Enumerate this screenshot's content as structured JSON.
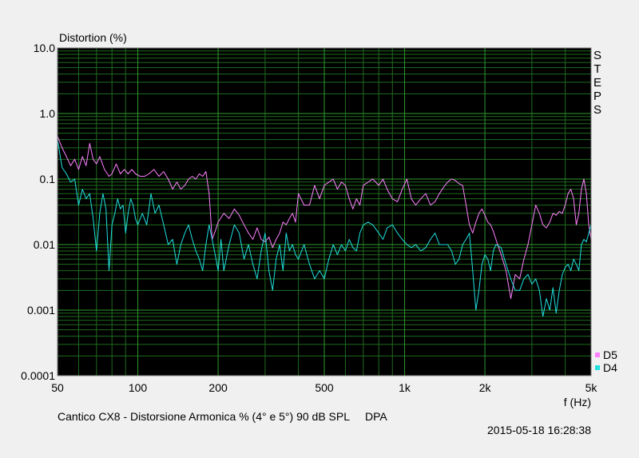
{
  "chart_data": {
    "type": "line",
    "ylabel": "Distortion (%)",
    "xlabel": "f (Hz)",
    "x_scale": "log",
    "y_scale": "log",
    "xlim": [
      50,
      5000
    ],
    "ylim": [
      0.0001,
      10
    ],
    "y_ticks": [
      {
        "value": 10,
        "label": "10.0"
      },
      {
        "value": 1,
        "label": "1.0"
      },
      {
        "value": 0.1,
        "label": "0.1"
      },
      {
        "value": 0.01,
        "label": "0.01"
      },
      {
        "value": 0.001,
        "label": "0.001"
      },
      {
        "value": 0.0001,
        "label": "0.0001"
      }
    ],
    "x_ticks": [
      {
        "value": 50,
        "label": "50"
      },
      {
        "value": 100,
        "label": "100"
      },
      {
        "value": 200,
        "label": "200"
      },
      {
        "value": 500,
        "label": "500"
      },
      {
        "value": 1000,
        "label": "1k"
      },
      {
        "value": 2000,
        "label": "2k"
      },
      {
        "value": 5000,
        "label": "5k"
      }
    ],
    "grid": true,
    "side_label": "STEPS",
    "footer_text": "Cantico CX8 - Distorsione Armonica % (4° e 5°) 90 dB SPL     DPA",
    "timestamp": "2015-05-18 16:28:38",
    "legend_position": "bottom-right",
    "series": [
      {
        "name": "D5",
        "color": "#ff80ff",
        "points": [
          [
            50,
            0.45
          ],
          [
            52,
            0.3
          ],
          [
            54,
            0.22
          ],
          [
            56,
            0.16
          ],
          [
            58,
            0.2
          ],
          [
            60,
            0.14
          ],
          [
            62,
            0.22
          ],
          [
            64,
            0.16
          ],
          [
            66,
            0.35
          ],
          [
            68,
            0.2
          ],
          [
            70,
            0.17
          ],
          [
            72,
            0.22
          ],
          [
            75,
            0.14
          ],
          [
            78,
            0.11
          ],
          [
            80,
            0.12
          ],
          [
            83,
            0.17
          ],
          [
            86,
            0.12
          ],
          [
            89,
            0.14
          ],
          [
            92,
            0.12
          ],
          [
            95,
            0.14
          ],
          [
            98,
            0.12
          ],
          [
            102,
            0.11
          ],
          [
            106,
            0.11
          ],
          [
            110,
            0.12
          ],
          [
            115,
            0.14
          ],
          [
            120,
            0.11
          ],
          [
            125,
            0.13
          ],
          [
            130,
            0.1
          ],
          [
            135,
            0.07
          ],
          [
            140,
            0.09
          ],
          [
            145,
            0.07
          ],
          [
            150,
            0.08
          ],
          [
            155,
            0.1
          ],
          [
            160,
            0.11
          ],
          [
            165,
            0.1
          ],
          [
            170,
            0.12
          ],
          [
            175,
            0.11
          ],
          [
            180,
            0.13
          ],
          [
            185,
            0.06
          ],
          [
            190,
            0.012
          ],
          [
            195,
            0.016
          ],
          [
            200,
            0.022
          ],
          [
            210,
            0.03
          ],
          [
            220,
            0.025
          ],
          [
            230,
            0.035
          ],
          [
            240,
            0.028
          ],
          [
            250,
            0.02
          ],
          [
            260,
            0.015
          ],
          [
            270,
            0.012
          ],
          [
            280,
            0.018
          ],
          [
            290,
            0.012
          ],
          [
            300,
            0.011
          ],
          [
            310,
            0.013
          ],
          [
            320,
            0.009
          ],
          [
            330,
            0.012
          ],
          [
            340,
            0.015
          ],
          [
            350,
            0.022
          ],
          [
            360,
            0.02
          ],
          [
            370,
            0.025
          ],
          [
            380,
            0.03
          ],
          [
            390,
            0.022
          ],
          [
            400,
            0.06
          ],
          [
            420,
            0.04
          ],
          [
            440,
            0.04
          ],
          [
            460,
            0.08
          ],
          [
            480,
            0.05
          ],
          [
            500,
            0.08
          ],
          [
            520,
            0.09
          ],
          [
            540,
            0.1
          ],
          [
            560,
            0.07
          ],
          [
            580,
            0.09
          ],
          [
            600,
            0.08
          ],
          [
            620,
            0.05
          ],
          [
            640,
            0.035
          ],
          [
            660,
            0.05
          ],
          [
            680,
            0.04
          ],
          [
            700,
            0.08
          ],
          [
            730,
            0.09
          ],
          [
            760,
            0.1
          ],
          [
            800,
            0.08
          ],
          [
            830,
            0.1
          ],
          [
            860,
            0.07
          ],
          [
            900,
            0.05
          ],
          [
            940,
            0.045
          ],
          [
            980,
            0.07
          ],
          [
            1020,
            0.1
          ],
          [
            1060,
            0.05
          ],
          [
            1100,
            0.04
          ],
          [
            1150,
            0.05
          ],
          [
            1200,
            0.06
          ],
          [
            1250,
            0.04
          ],
          [
            1300,
            0.045
          ],
          [
            1350,
            0.06
          ],
          [
            1400,
            0.075
          ],
          [
            1450,
            0.09
          ],
          [
            1500,
            0.1
          ],
          [
            1550,
            0.095
          ],
          [
            1600,
            0.085
          ],
          [
            1650,
            0.08
          ],
          [
            1700,
            0.04
          ],
          [
            1750,
            0.02
          ],
          [
            1800,
            0.015
          ],
          [
            1850,
            0.022
          ],
          [
            1900,
            0.03
          ],
          [
            1950,
            0.035
          ],
          [
            2000,
            0.028
          ],
          [
            2050,
            0.022
          ],
          [
            2100,
            0.02
          ],
          [
            2150,
            0.016
          ],
          [
            2200,
            0.012
          ],
          [
            2300,
            0.007
          ],
          [
            2400,
            0.004
          ],
          [
            2500,
            0.0015
          ],
          [
            2600,
            0.0035
          ],
          [
            2700,
            0.003
          ],
          [
            2800,
            0.006
          ],
          [
            2900,
            0.01
          ],
          [
            3000,
            0.02
          ],
          [
            3100,
            0.04
          ],
          [
            3200,
            0.03
          ],
          [
            3300,
            0.02
          ],
          [
            3400,
            0.018
          ],
          [
            3500,
            0.022
          ],
          [
            3600,
            0.03
          ],
          [
            3700,
            0.028
          ],
          [
            3800,
            0.032
          ],
          [
            3900,
            0.03
          ],
          [
            4000,
            0.04
          ],
          [
            4100,
            0.06
          ],
          [
            4200,
            0.07
          ],
          [
            4300,
            0.05
          ],
          [
            4400,
            0.02
          ],
          [
            4500,
            0.03
          ],
          [
            4600,
            0.07
          ],
          [
            4700,
            0.1
          ],
          [
            4800,
            0.06
          ],
          [
            4900,
            0.02
          ],
          [
            5000,
            0.012
          ]
        ]
      },
      {
        "name": "D4",
        "color": "#20e0e0",
        "points": [
          [
            50,
            0.4
          ],
          [
            52,
            0.15
          ],
          [
            54,
            0.12
          ],
          [
            56,
            0.09
          ],
          [
            58,
            0.1
          ],
          [
            60,
            0.04
          ],
          [
            62,
            0.07
          ],
          [
            64,
            0.05
          ],
          [
            66,
            0.06
          ],
          [
            68,
            0.025
          ],
          [
            70,
            0.008
          ],
          [
            72,
            0.03
          ],
          [
            74,
            0.06
          ],
          [
            76,
            0.035
          ],
          [
            78,
            0.004
          ],
          [
            80,
            0.02
          ],
          [
            82,
            0.03
          ],
          [
            84,
            0.05
          ],
          [
            86,
            0.035
          ],
          [
            88,
            0.04
          ],
          [
            90,
            0.015
          ],
          [
            92,
            0.03
          ],
          [
            94,
            0.05
          ],
          [
            96,
            0.04
          ],
          [
            98,
            0.025
          ],
          [
            100,
            0.02
          ],
          [
            104,
            0.03
          ],
          [
            108,
            0.02
          ],
          [
            112,
            0.06
          ],
          [
            116,
            0.03
          ],
          [
            120,
            0.04
          ],
          [
            125,
            0.02
          ],
          [
            130,
            0.01
          ],
          [
            135,
            0.012
          ],
          [
            140,
            0.005
          ],
          [
            145,
            0.01
          ],
          [
            150,
            0.015
          ],
          [
            155,
            0.02
          ],
          [
            160,
            0.012
          ],
          [
            165,
            0.008
          ],
          [
            170,
            0.006
          ],
          [
            175,
            0.004
          ],
          [
            180,
            0.01
          ],
          [
            185,
            0.02
          ],
          [
            190,
            0.012
          ],
          [
            195,
            0.007
          ],
          [
            200,
            0.004
          ],
          [
            205,
            0.012
          ],
          [
            210,
            0.004
          ],
          [
            220,
            0.01
          ],
          [
            230,
            0.02
          ],
          [
            240,
            0.015
          ],
          [
            250,
            0.006
          ],
          [
            260,
            0.01
          ],
          [
            270,
            0.005
          ],
          [
            280,
            0.003
          ],
          [
            290,
            0.008
          ],
          [
            300,
            0.015
          ],
          [
            310,
            0.004
          ],
          [
            320,
            0.002
          ],
          [
            330,
            0.006
          ],
          [
            340,
            0.01
          ],
          [
            350,
            0.004
          ],
          [
            360,
            0.015
          ],
          [
            370,
            0.008
          ],
          [
            380,
            0.01
          ],
          [
            390,
            0.007
          ],
          [
            400,
            0.006
          ],
          [
            420,
            0.01
          ],
          [
            440,
            0.005
          ],
          [
            460,
            0.003
          ],
          [
            480,
            0.004
          ],
          [
            500,
            0.003
          ],
          [
            520,
            0.006
          ],
          [
            540,
            0.01
          ],
          [
            560,
            0.007
          ],
          [
            580,
            0.01
          ],
          [
            600,
            0.008
          ],
          [
            620,
            0.012
          ],
          [
            640,
            0.009
          ],
          [
            660,
            0.008
          ],
          [
            680,
            0.015
          ],
          [
            700,
            0.02
          ],
          [
            730,
            0.022
          ],
          [
            760,
            0.02
          ],
          [
            800,
            0.015
          ],
          [
            830,
            0.012
          ],
          [
            860,
            0.018
          ],
          [
            900,
            0.02
          ],
          [
            940,
            0.015
          ],
          [
            980,
            0.012
          ],
          [
            1020,
            0.01
          ],
          [
            1060,
            0.009
          ],
          [
            1100,
            0.01
          ],
          [
            1150,
            0.008
          ],
          [
            1200,
            0.009
          ],
          [
            1250,
            0.012
          ],
          [
            1300,
            0.015
          ],
          [
            1350,
            0.01
          ],
          [
            1400,
            0.01
          ],
          [
            1450,
            0.01
          ],
          [
            1500,
            0.008
          ],
          [
            1550,
            0.005
          ],
          [
            1600,
            0.006
          ],
          [
            1650,
            0.01
          ],
          [
            1700,
            0.012
          ],
          [
            1750,
            0.015
          ],
          [
            1800,
            0.004
          ],
          [
            1850,
            0.001
          ],
          [
            1900,
            0.002
          ],
          [
            1950,
            0.005
          ],
          [
            2000,
            0.007
          ],
          [
            2050,
            0.006
          ],
          [
            2100,
            0.004
          ],
          [
            2150,
            0.008
          ],
          [
            2200,
            0.01
          ],
          [
            2300,
            0.009
          ],
          [
            2400,
            0.005
          ],
          [
            2500,
            0.003
          ],
          [
            2600,
            0.002
          ],
          [
            2700,
            0.002
          ],
          [
            2800,
            0.003
          ],
          [
            2900,
            0.0035
          ],
          [
            3000,
            0.0025
          ],
          [
            3100,
            0.003
          ],
          [
            3200,
            0.002
          ],
          [
            3300,
            0.0008
          ],
          [
            3400,
            0.0015
          ],
          [
            3500,
            0.001
          ],
          [
            3600,
            0.0022
          ],
          [
            3700,
            0.0009
          ],
          [
            3800,
            0.002
          ],
          [
            3900,
            0.0035
          ],
          [
            4000,
            0.0045
          ],
          [
            4100,
            0.005
          ],
          [
            4200,
            0.004
          ],
          [
            4300,
            0.006
          ],
          [
            4400,
            0.005
          ],
          [
            4500,
            0.004
          ],
          [
            4600,
            0.01
          ],
          [
            4700,
            0.012
          ],
          [
            4800,
            0.011
          ],
          [
            4900,
            0.015
          ],
          [
            5000,
            0.02
          ]
        ]
      }
    ]
  }
}
